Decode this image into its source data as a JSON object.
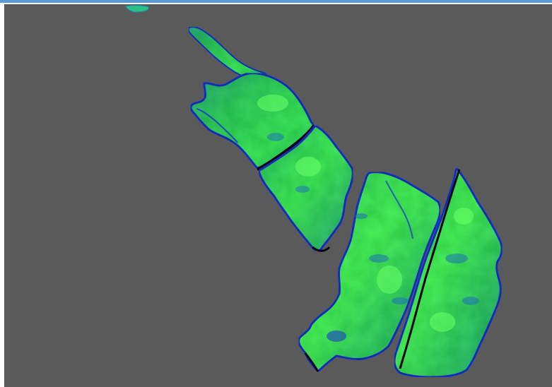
{
  "view": {
    "background_color": "#5a5a5a",
    "frame_accent_color": "#5b9bd5",
    "colors": {
      "edge": "#1a2fd0",
      "dark_edge": "#05051a",
      "low": "#1e7fb0",
      "mid": "#20b070",
      "high": "#3ee85a",
      "peak": "#66ff66"
    }
  },
  "layers": [
    {
      "id": "field-northwest-strip"
    },
    {
      "id": "field-northwest-main"
    },
    {
      "id": "field-center"
    },
    {
      "id": "field-southeast-west"
    },
    {
      "id": "field-southeast-east"
    },
    {
      "id": "field-fragment-top"
    }
  ]
}
